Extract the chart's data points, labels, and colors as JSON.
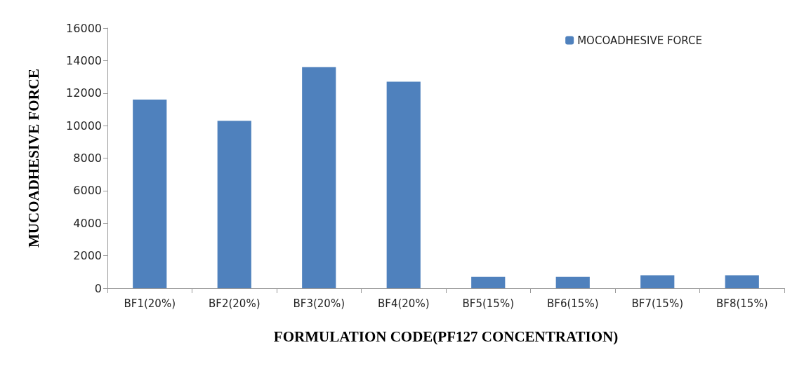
{
  "chart_data": {
    "type": "bar",
    "xlabel": "FORMULATION CODE(PF127 CONCENTRATION)",
    "ylabel": "MUCOADHESIVE FORCE",
    "categories": [
      "BF1(20%)",
      "BF2(20%)",
      "BF3(20%)",
      "BF4(20%)",
      "BF5(15%)",
      "BF6(15%)",
      "BF7(15%)",
      "BF8(15%)"
    ],
    "series": [
      {
        "name": "MOCOADHESIVE FORCE",
        "color": "#4f81bd",
        "values": [
          11600,
          10300,
          13600,
          12700,
          700,
          700,
          800,
          800
        ]
      }
    ],
    "ylim": [
      0,
      16000
    ],
    "yticks": [
      0,
      2000,
      4000,
      6000,
      8000,
      10000,
      12000,
      14000,
      16000
    ],
    "grid": false,
    "legend": "top right"
  }
}
